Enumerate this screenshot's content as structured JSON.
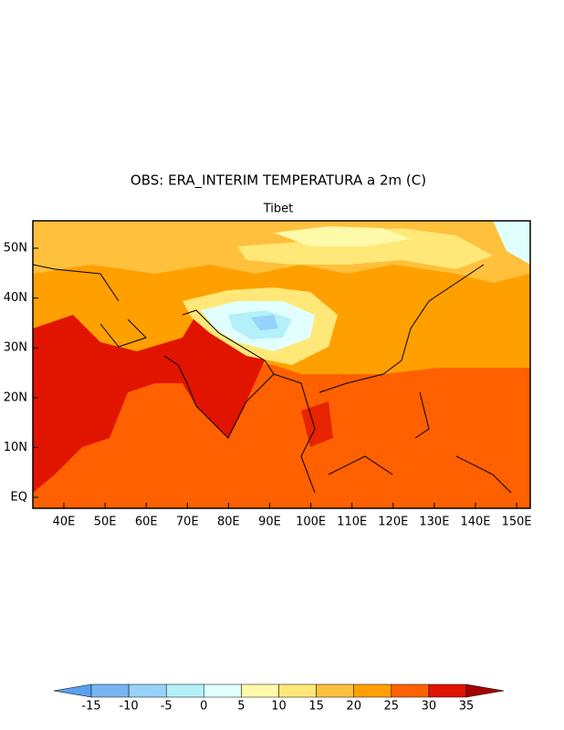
{
  "header": {
    "title": "OBS: ERA_INTERIM TEMPERATURA a 2m (C)",
    "subtitle": "Tibet"
  },
  "map": {
    "lon_labels": [
      "40E",
      "50E",
      "60E",
      "70E",
      "80E",
      "90E",
      "100E",
      "110E",
      "120E",
      "130E",
      "140E",
      "150E"
    ],
    "lat_labels": [
      "EQ",
      "10N",
      "20N",
      "30N",
      "40N",
      "50N"
    ]
  },
  "colorbar": {
    "levels": [
      -15,
      -10,
      -5,
      0,
      5,
      10,
      15,
      20,
      25,
      30,
      35
    ],
    "colors": [
      "#5aa0f0",
      "#78b4f0",
      "#96d2fa",
      "#b4f0fa",
      "#e1ffff",
      "#fffaaa",
      "#ffe878",
      "#ffc03c",
      "#ffa000",
      "#ff6000",
      "#e11400",
      "#a50000"
    ]
  }
}
